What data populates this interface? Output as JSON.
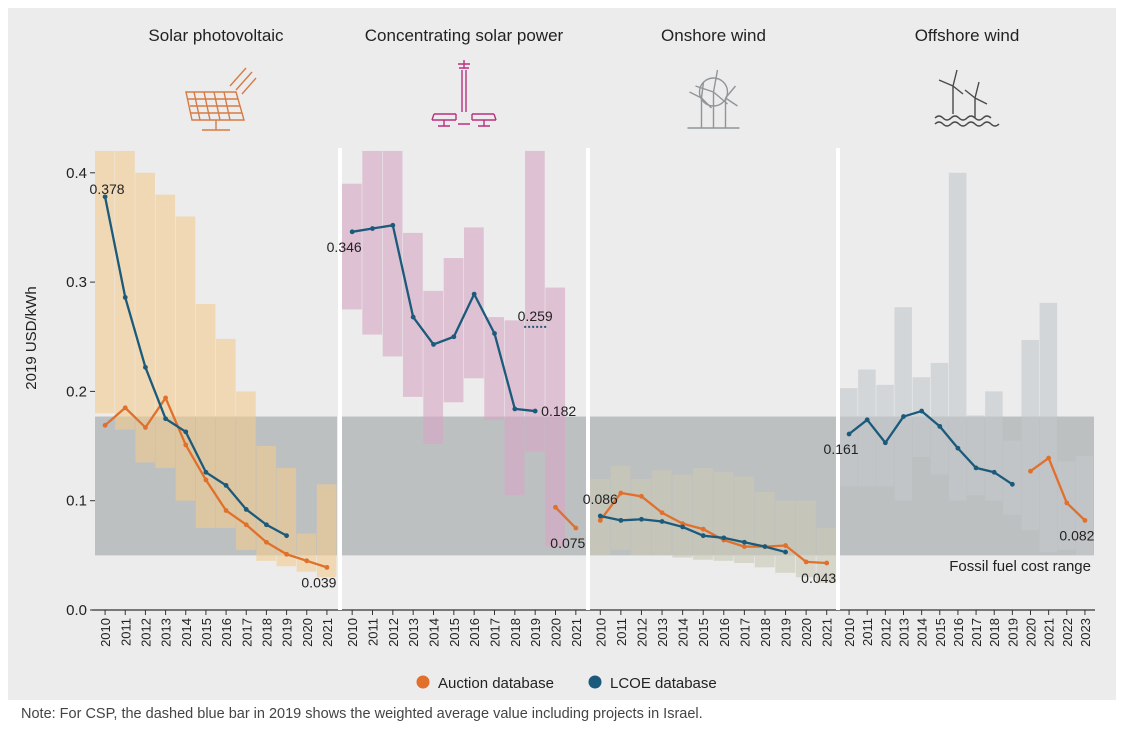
{
  "chart_data": {
    "type": "line",
    "ylabel": "2019 USD/kWh",
    "ylim": [
      0,
      0.42
    ],
    "yticks": [
      "0.0",
      "0.1",
      "0.2",
      "0.3",
      "0.4"
    ],
    "fossil_range": {
      "label": "Fossil fuel cost range",
      "min": 0.05,
      "max": 0.177
    },
    "legend": [
      {
        "name": "Auction database",
        "color": "#e0702b"
      },
      {
        "name": "LCOE database",
        "color": "#1b5a7a"
      }
    ],
    "colors": {
      "auction": "#e0702b",
      "lcoe": "#1b5a7a",
      "fossil_band": "#aeb2b3"
    },
    "panels": [
      {
        "title": "Solar photovoltaic",
        "icon": "solar-panel-icon",
        "icon_color": "#d67b45",
        "band_color": "#f0cc90",
        "years": [
          "2010",
          "2011",
          "2012",
          "2013",
          "2014",
          "2015",
          "2016",
          "2017",
          "2018",
          "2019",
          "2020",
          "2021"
        ],
        "ranges": [
          [
            0.18,
            0.42
          ],
          [
            0.165,
            0.42
          ],
          [
            0.135,
            0.4
          ],
          [
            0.13,
            0.38
          ],
          [
            0.1,
            0.36
          ],
          [
            0.075,
            0.28
          ],
          [
            0.075,
            0.248
          ],
          [
            0.055,
            0.2
          ],
          [
            0.045,
            0.15
          ],
          [
            0.04,
            0.13
          ],
          [
            0.035,
            0.07
          ],
          [
            0.03,
            0.115
          ]
        ],
        "lcoe": [
          0.378,
          0.286,
          0.222,
          0.175,
          0.163,
          0.126,
          0.114,
          0.092,
          0.078,
          0.068,
          null,
          null
        ],
        "auction": [
          0.169,
          0.185,
          0.167,
          0.194,
          0.151,
          0.119,
          0.091,
          0.078,
          0.062,
          0.051,
          0.045,
          0.039
        ],
        "labels": [
          {
            "text": "0.378",
            "series": "lcoe",
            "index": 0,
            "pos": "left-below"
          },
          {
            "text": "0.039",
            "series": "auction",
            "index": 11,
            "pos": "below"
          }
        ]
      },
      {
        "title": "Concentrating solar power",
        "icon": "csp-tower-icon",
        "icon_color": "#b9307f",
        "band_color": "#d6a6c5",
        "years": [
          "2010",
          "2011",
          "2012",
          "2013",
          "2014",
          "2015",
          "2016",
          "2017",
          "2018",
          "2019",
          "2020",
          "2021"
        ],
        "ranges": [
          [
            0.275,
            0.39
          ],
          [
            0.252,
            0.42
          ],
          [
            0.232,
            0.42
          ],
          [
            0.195,
            0.345
          ],
          [
            0.152,
            0.292
          ],
          [
            0.19,
            0.322
          ],
          [
            0.212,
            0.35
          ],
          [
            0.174,
            0.268
          ],
          [
            0.105,
            0.265
          ],
          [
            0.145,
            0.42
          ],
          [
            0.058,
            0.295
          ],
          null
        ],
        "lcoe": [
          0.346,
          0.349,
          0.352,
          0.268,
          0.243,
          0.25,
          0.289,
          0.253,
          0.184,
          0.182,
          null,
          null
        ],
        "auction": [
          null,
          null,
          null,
          null,
          null,
          null,
          null,
          null,
          null,
          null,
          0.094,
          0.075
        ],
        "dashed": {
          "index": 9,
          "value": 0.259,
          "label": "0.259"
        },
        "labels": [
          {
            "text": "0.346",
            "series": "lcoe",
            "index": 0,
            "pos": "below"
          },
          {
            "text": "0.182",
            "series": "lcoe",
            "index": 9,
            "pos": "right"
          },
          {
            "text": "0.075",
            "series": "auction",
            "index": 11,
            "pos": "below"
          }
        ]
      },
      {
        "title": "Onshore wind",
        "icon": "wind-turbine-icon",
        "icon_color": "#8f9598",
        "band_color": "#c9c8b4",
        "years": [
          "2010",
          "2011",
          "2012",
          "2013",
          "2014",
          "2015",
          "2016",
          "2017",
          "2018",
          "2019",
          "2020",
          "2021"
        ],
        "ranges": [
          [
            0.05,
            0.12
          ],
          [
            0.055,
            0.132
          ],
          [
            0.05,
            0.12
          ],
          [
            0.05,
            0.128
          ],
          [
            0.048,
            0.124
          ],
          [
            0.046,
            0.13
          ],
          [
            0.045,
            0.126
          ],
          [
            0.043,
            0.122
          ],
          [
            0.039,
            0.108
          ],
          [
            0.034,
            0.1
          ],
          [
            0.03,
            0.1
          ],
          [
            0.025,
            0.075
          ]
        ],
        "lcoe": [
          0.086,
          0.082,
          0.083,
          0.081,
          0.076,
          0.068,
          0.066,
          0.062,
          0.058,
          0.053,
          null,
          null
        ],
        "auction": [
          0.082,
          0.107,
          0.104,
          0.089,
          0.079,
          0.074,
          0.064,
          0.058,
          0.058,
          0.059,
          0.044,
          0.043
        ],
        "labels": [
          {
            "text": "0.086",
            "series": "lcoe",
            "index": 0,
            "pos": "above"
          },
          {
            "text": "0.043",
            "series": "auction",
            "index": 11,
            "pos": "below"
          }
        ]
      },
      {
        "title": "Offshore wind",
        "icon": "offshore-wind-icon",
        "icon_color": "#4a4a4a",
        "band_color": "#c3c8cb",
        "years": [
          "2010",
          "2011",
          "2012",
          "2013",
          "2014",
          "2015",
          "2016",
          "2017",
          "2018",
          "2019",
          "2020",
          "2021",
          "2022",
          "2023"
        ],
        "ranges": [
          [
            0.113,
            0.203
          ],
          [
            0.113,
            0.22
          ],
          [
            0.113,
            0.206
          ],
          [
            0.1,
            0.277
          ],
          [
            0.14,
            0.213
          ],
          [
            0.124,
            0.226
          ],
          [
            0.1,
            0.4
          ],
          [
            0.105,
            0.178
          ],
          [
            0.1,
            0.2
          ],
          [
            0.087,
            0.155
          ],
          [
            0.073,
            0.247
          ],
          [
            0.053,
            0.281
          ],
          [
            0.055,
            0.136
          ],
          [
            0.05,
            0.141
          ]
        ],
        "lcoe": [
          0.161,
          0.174,
          0.153,
          0.177,
          0.182,
          0.168,
          0.148,
          0.13,
          0.126,
          0.115,
          null,
          null,
          null,
          null
        ],
        "auction": [
          null,
          null,
          null,
          null,
          null,
          null,
          null,
          null,
          null,
          null,
          0.127,
          0.139,
          0.098,
          0.082
        ],
        "labels": [
          {
            "text": "0.161",
            "series": "lcoe",
            "index": 0,
            "pos": "below"
          },
          {
            "text": "0.082",
            "series": "auction",
            "index": 13,
            "pos": "below"
          }
        ]
      }
    ]
  },
  "note": "Note: For CSP, the dashed blue bar in 2019 shows the weighted average value including projects in Israel."
}
